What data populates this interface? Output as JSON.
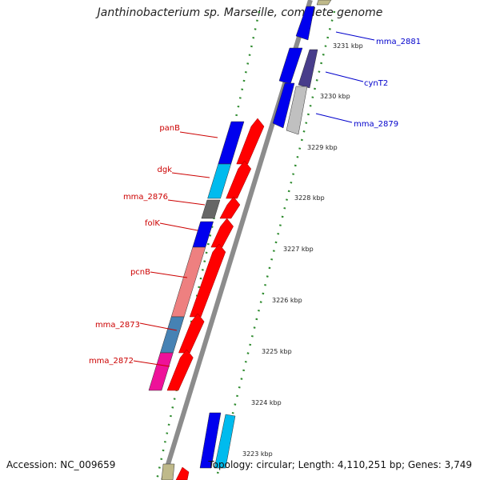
{
  "title": "Janthinobacterium sp. Marseille, complete genome",
  "accession": "Accession: NC_009659",
  "topology": "Topology: circular; Length: 4,110,251 bp; Genes: 3,749",
  "colors": {
    "backbone": "#8c8c8c",
    "tick": "#2e8b2e",
    "label_left": "#cc0000",
    "label_right": "#0000cc"
  },
  "kbp_labels": [
    "3231 kbp",
    "3230 kbp",
    "3229 kbp",
    "3228 kbp",
    "3227 kbp",
    "3226 kbp",
    "3225 kbp",
    "3224 kbp",
    "3223 kbp"
  ],
  "left_genes": [
    {
      "label": "panB",
      "fill": "#0000ee",
      "arrow_fill": "#ff0000"
    },
    {
      "label": "dgk",
      "fill": "#00bbee",
      "arrow_fill": "#ff0000"
    },
    {
      "label": "mma_2876",
      "fill": "#666666",
      "arrow_fill": "#ff0000"
    },
    {
      "label": "folK",
      "fill": "#0000ee",
      "arrow_fill": "#ff0000"
    },
    {
      "label": "pcnB",
      "fill": "#ee8080",
      "arrow_fill": "#ff0000"
    },
    {
      "label": "mma_2873",
      "fill": "#4682b4",
      "arrow_fill": "#ff0000"
    },
    {
      "label": "mma_2872",
      "fill": "#ee1199",
      "arrow_fill": "#ff0000"
    }
  ],
  "right_genes": [
    {
      "label": "mma_2881",
      "fill": "#0000ee"
    },
    {
      "label": "cynT2",
      "fill": "#483d8b"
    },
    {
      "label": "mma_2879",
      "fill": "#c0c0c0"
    }
  ]
}
